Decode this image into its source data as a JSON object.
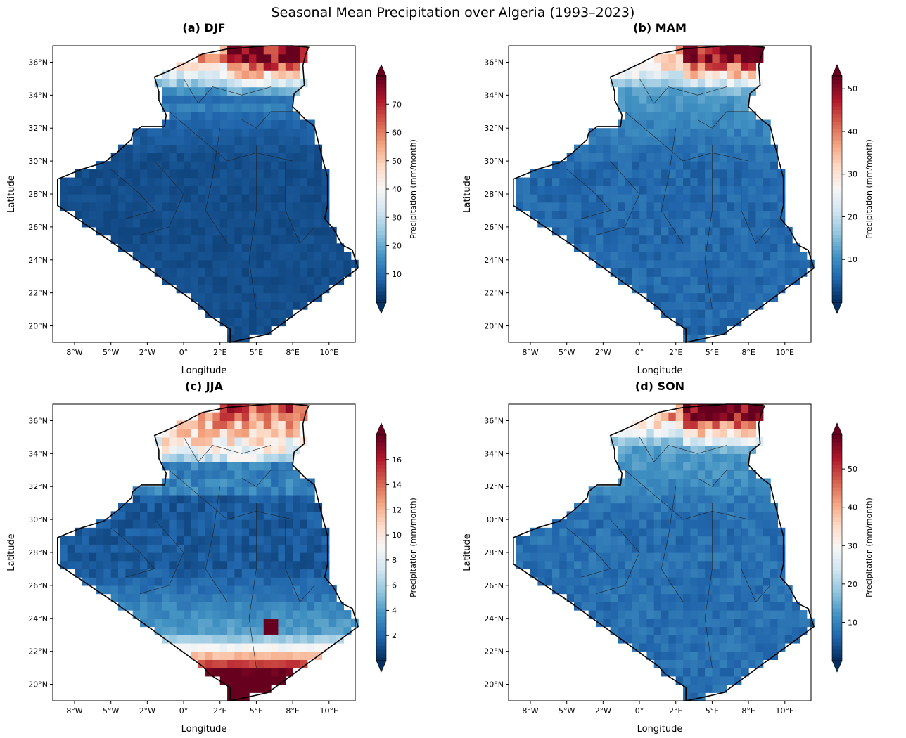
{
  "title": "Seasonal Mean Precipitation over Algeria (1993–2023)",
  "colormap": "RdBu_r",
  "colormap_stops": [
    "#053061",
    "#2166ac",
    "#4393c3",
    "#92c5de",
    "#d1e5f0",
    "#f7f7f7",
    "#fddbc7",
    "#f4a582",
    "#d6604d",
    "#b2182b",
    "#67001f"
  ],
  "map": {
    "lon_range": [
      -9,
      11.8
    ],
    "lat_range": [
      19,
      37
    ],
    "x_ticks": [
      "8°W",
      "5°W",
      "2°W",
      "0°",
      "2°E",
      "5°E",
      "8°E",
      "10°E"
    ],
    "x_tick_values": [
      -7.5,
      -5,
      -2.5,
      0,
      2.5,
      5,
      7.5,
      10
    ],
    "y_ticks": [
      "20°N",
      "22°N",
      "24°N",
      "26°N",
      "28°N",
      "30°N",
      "32°N",
      "34°N",
      "36°N"
    ],
    "y_tick_values": [
      20,
      22,
      24,
      26,
      28,
      30,
      32,
      34,
      36
    ],
    "xlabel": "Longitude",
    "ylabel": "Latitude",
    "colorbar_label": "Precipitation (mm/month)"
  },
  "panels": [
    {
      "title": "(a) DJF",
      "season": "DJF",
      "vmax": 80,
      "cb_ticks": [
        "10",
        "20",
        "30",
        "40",
        "50",
        "60",
        "70"
      ],
      "cb_values": [
        10,
        20,
        30,
        40,
        50,
        60,
        70
      ],
      "north_max": 80,
      "south_base": 3
    },
    {
      "title": "(b) MAM",
      "season": "MAM",
      "vmax": 53,
      "cb_ticks": [
        "10",
        "20",
        "30",
        "40",
        "50"
      ],
      "cb_values": [
        10,
        20,
        30,
        40,
        50
      ],
      "north_max": 53,
      "south_base": 4
    },
    {
      "title": "(c) JJA",
      "season": "JJA",
      "vmax": 18,
      "cb_ticks": [
        "2",
        "4",
        "6",
        "8",
        "10",
        "12",
        "14",
        "16"
      ],
      "cb_values": [
        2,
        4,
        6,
        8,
        10,
        12,
        14,
        16
      ],
      "north_max": 14,
      "south_base": 2
    },
    {
      "title": "(d) SON",
      "season": "SON",
      "vmax": 59,
      "cb_ticks": [
        "10",
        "20",
        "30",
        "40",
        "50"
      ],
      "cb_values": [
        10,
        20,
        30,
        40,
        50
      ],
      "north_max": 59,
      "south_base": 5
    }
  ]
}
